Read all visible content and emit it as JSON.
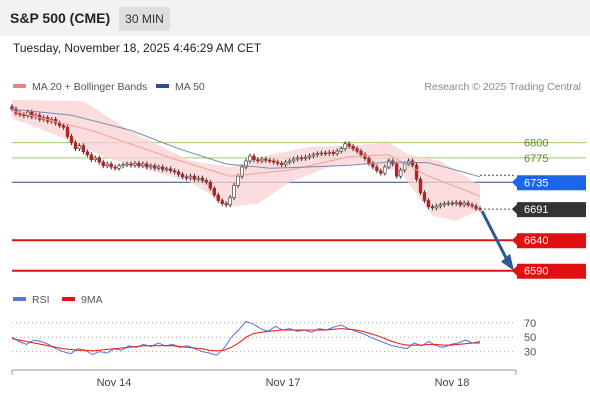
{
  "header": {
    "title": "S&P 500 (CME)",
    "timeframe": "30 MIN",
    "datetime": "Tuesday, November 18, 2025 4:46:29 AM CET"
  },
  "legend": {
    "items": [
      {
        "name": "MA 20 + Bollinger Bands",
        "color": "#f08080"
      },
      {
        "name": "MA 50",
        "color": "#2b4f8c"
      }
    ],
    "credit": "Research © 2025 Trading Central"
  },
  "rsi_legend": {
    "items": [
      {
        "name": "RSI",
        "color": "#5577dd"
      },
      {
        "name": "9MA",
        "color": "#ee1111"
      }
    ]
  },
  "colors": {
    "up_candle": "#ffffff",
    "down_candle": "#b22222",
    "candle_wick": "#333333",
    "band_fill": "#f9d2d2",
    "ma20": "#f0a0a0",
    "ma50": "#7a88b0",
    "resistance": "#9acd6e",
    "pivot": "#2b4f8c",
    "support": "#e01010",
    "current": "#333333",
    "arrow": "#2b5a96"
  },
  "chart_data": [
    {
      "type": "candlestick",
      "title": "S&P 500 (CME)",
      "timeframe": "30 MIN",
      "x_tick_labels": [
        "Nov 14",
        "Nov 17",
        "Nov 18"
      ],
      "ylim": [
        6565,
        6860
      ],
      "levels": [
        {
          "value": 6800,
          "label": "6800",
          "kind": "resistance"
        },
        {
          "value": 6775,
          "label": "6775",
          "kind": "resistance"
        },
        {
          "value": 6735,
          "label": "6735",
          "kind": "pivot"
        },
        {
          "value": 6691,
          "label": "6691",
          "kind": "current"
        },
        {
          "value": 6640,
          "label": "6640",
          "kind": "support"
        },
        {
          "value": 6590,
          "label": "6590",
          "kind": "support"
        }
      ],
      "closes": [
        6855,
        6848,
        6846,
        6844,
        6850,
        6842,
        6845,
        6838,
        6841,
        6835,
        6838,
        6832,
        6828,
        6825,
        6810,
        6800,
        6790,
        6795,
        6785,
        6780,
        6772,
        6775,
        6768,
        6762,
        6765,
        6760,
        6758,
        6762,
        6764,
        6765,
        6763,
        6766,
        6762,
        6765,
        6760,
        6762,
        6758,
        6760,
        6756,
        6757,
        6754,
        6752,
        6748,
        6744,
        6742,
        6745,
        6740,
        6742,
        6738,
        6735,
        6725,
        6714,
        6705,
        6700,
        6698,
        6710,
        6730,
        6745,
        6760,
        6770,
        6778,
        6772,
        6770,
        6773,
        6771,
        6770,
        6768,
        6766,
        6764,
        6768,
        6770,
        6773,
        6775,
        6774,
        6776,
        6778,
        6780,
        6782,
        6783,
        6782,
        6784,
        6782,
        6786,
        6790,
        6798,
        6794,
        6790,
        6786,
        6780,
        6774,
        6766,
        6760,
        6754,
        6750,
        6760,
        6770,
        6765,
        6745,
        6755,
        6765,
        6770,
        6763,
        6740,
        6718,
        6705,
        6695,
        6693,
        6696,
        6698,
        6700,
        6701,
        6700,
        6702,
        6698,
        6701,
        6698,
        6696,
        6692,
        6691
      ],
      "ma20_points": [
        [
          0,
          6852
        ],
        [
          20,
          6820
        ],
        [
          40,
          6775
        ],
        [
          55,
          6745
        ],
        [
          70,
          6755
        ],
        [
          85,
          6777
        ],
        [
          95,
          6780
        ],
        [
          105,
          6745
        ],
        [
          115,
          6720
        ],
        [
          118,
          6712
        ]
      ],
      "bollinger_upper_points": [
        [
          0,
          6870
        ],
        [
          18,
          6868
        ],
        [
          30,
          6818
        ],
        [
          45,
          6770
        ],
        [
          55,
          6760
        ],
        [
          65,
          6780
        ],
        [
          75,
          6793
        ],
        [
          85,
          6795
        ],
        [
          95,
          6800
        ],
        [
          100,
          6780
        ],
        [
          108,
          6770
        ],
        [
          118,
          6730
        ]
      ],
      "bollinger_lower_points": [
        [
          0,
          6840
        ],
        [
          12,
          6810
        ],
        [
          24,
          6775
        ],
        [
          32,
          6760
        ],
        [
          45,
          6735
        ],
        [
          55,
          6695
        ],
        [
          62,
          6700
        ],
        [
          70,
          6735
        ],
        [
          80,
          6760
        ],
        [
          90,
          6765
        ],
        [
          98,
          6752
        ],
        [
          106,
          6680
        ],
        [
          112,
          6672
        ],
        [
          118,
          6690
        ]
      ],
      "ma50_points": [
        [
          0,
          6855
        ],
        [
          15,
          6845
        ],
        [
          30,
          6820
        ],
        [
          42,
          6790
        ],
        [
          54,
          6765
        ],
        [
          65,
          6758
        ],
        [
          75,
          6760
        ],
        [
          85,
          6763
        ],
        [
          95,
          6768
        ],
        [
          105,
          6767
        ],
        [
          112,
          6755
        ],
        [
          118,
          6744
        ]
      ],
      "projection": {
        "from": 6691,
        "to": 6590
      }
    },
    {
      "type": "line",
      "title": "RSI",
      "ylim": [
        10,
        85
      ],
      "y_tick_labels": [
        70,
        50,
        30
      ],
      "series": [
        {
          "name": "RSI",
          "values": [
            50,
            44,
            40,
            46,
            44,
            40,
            34,
            30,
            27,
            34,
            32,
            26,
            30,
            28,
            34,
            32,
            38,
            36,
            40,
            37,
            42,
            38,
            40,
            36,
            38,
            34,
            30,
            28,
            25,
            35,
            50,
            60,
            72,
            68,
            62,
            58,
            65,
            60,
            62,
            58,
            60,
            57,
            62,
            60,
            64,
            67,
            62,
            58,
            55,
            50,
            46,
            42,
            38,
            36,
            34,
            42,
            38,
            44,
            38,
            36,
            40,
            42,
            46,
            42,
            44
          ]
        },
        {
          "name": "9MA",
          "values": [
            48,
            46,
            44,
            42,
            40,
            38,
            36,
            34,
            33,
            32,
            32,
            31,
            32,
            33,
            34,
            35,
            36,
            37,
            38,
            38,
            38,
            38,
            38,
            37,
            36,
            35,
            34,
            32,
            31,
            32,
            36,
            42,
            50,
            55,
            57,
            58,
            59,
            60,
            60,
            60,
            60,
            60,
            60,
            60,
            61,
            62,
            61,
            60,
            58,
            55,
            52,
            48,
            44,
            41,
            39,
            39,
            39,
            40,
            40,
            39,
            39,
            40,
            41,
            42,
            42
          ]
        }
      ]
    }
  ]
}
